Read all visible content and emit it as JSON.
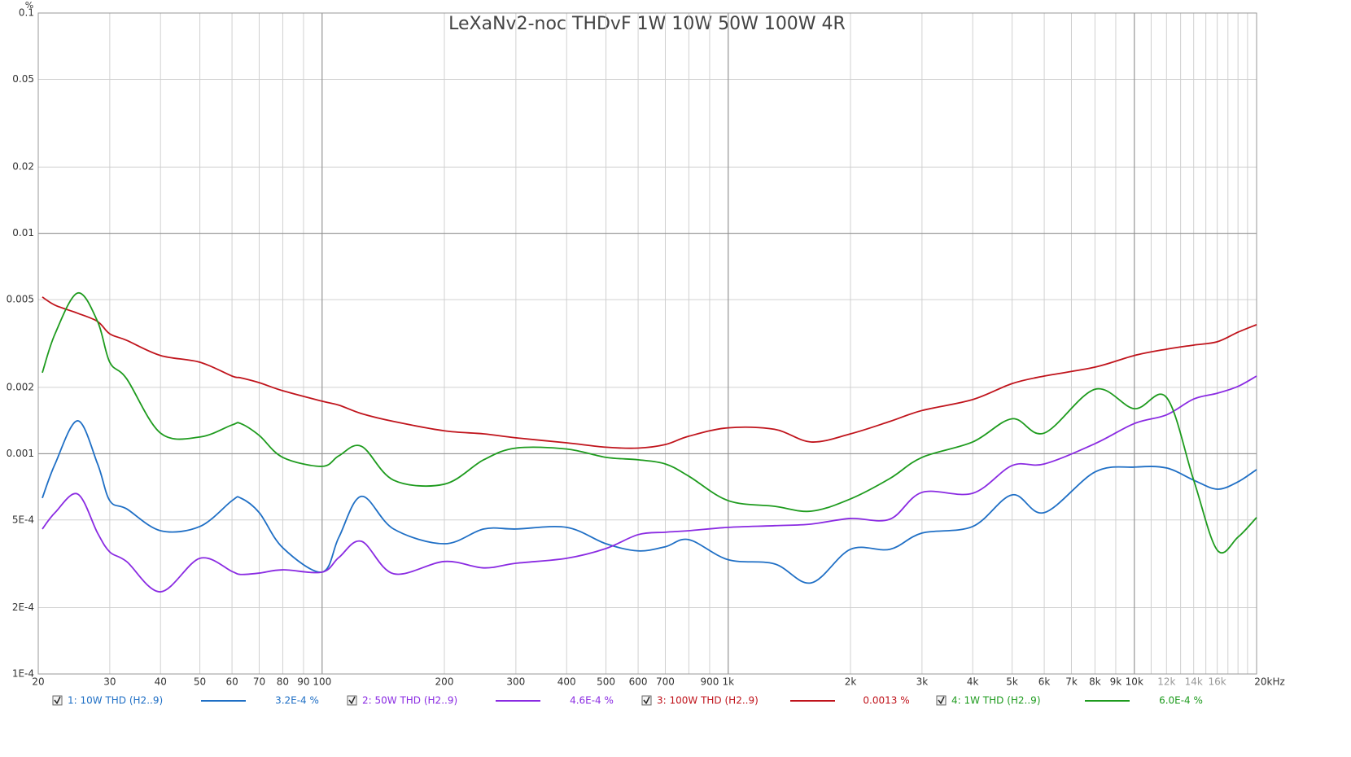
{
  "chart_data": {
    "type": "line",
    "title": "LeXaNv2-noc THDvF 1W 10W 50W 100W 4R",
    "y_unit": "%",
    "log_x": true,
    "log_y": true,
    "grid": true,
    "xlim": [
      20,
      20000
    ],
    "ylim": [
      0.0001,
      0.1
    ],
    "xticks": [
      20,
      30,
      40,
      50,
      60,
      70,
      80,
      90,
      100,
      200,
      300,
      400,
      500,
      600,
      700,
      900,
      {
        "value": 1000,
        "label": "1k"
      },
      {
        "value": 2000,
        "label": "2k"
      },
      {
        "value": 3000,
        "label": "3k"
      },
      {
        "value": 4000,
        "label": "4k"
      },
      {
        "value": 5000,
        "label": "5k"
      },
      {
        "value": 6000,
        "label": "6k"
      },
      {
        "value": 7000,
        "label": "7k"
      },
      {
        "value": 8000,
        "label": "8k"
      },
      {
        "value": 9000,
        "label": "9k"
      },
      {
        "value": 10000,
        "label": "10k"
      },
      {
        "value": 12000,
        "label": "12k"
      },
      {
        "value": 14000,
        "label": "14k"
      },
      {
        "value": 16000,
        "label": "16k"
      },
      {
        "value": 20000,
        "label": "20kHz"
      }
    ],
    "minor_xgrid": [
      800,
      11000,
      13000,
      15000,
      17000,
      18000,
      19000
    ],
    "major_xgrid": [
      100,
      1000,
      10000
    ],
    "major_ygrid": [
      0.01,
      0.001
    ],
    "yticks": [
      0.1,
      0.05,
      0.02,
      0.01,
      0.005,
      0.002,
      0.001,
      {
        "value": 0.0005,
        "label": "5E-4"
      },
      {
        "value": 0.0002,
        "label": "2E-4"
      },
      {
        "value": 0.0001,
        "label": "1E-4"
      }
    ],
    "x": [
      20,
      22,
      25,
      28,
      30,
      33,
      40,
      50,
      60,
      63,
      70,
      80,
      100,
      110,
      125,
      150,
      200,
      250,
      300,
      400,
      500,
      600,
      700,
      800,
      1000,
      1300,
      1600,
      2000,
      2500,
      3000,
      4000,
      5000,
      6000,
      8000,
      10000,
      12000,
      14000,
      16000,
      18000,
      20000
    ],
    "series": [
      {
        "name": "1: 10W THD (H2..9)",
        "color": "#1f6fc5",
        "cursor_label": "3.2E-4 %",
        "values": [
          0.000629,
          0.000898,
          0.00141,
          0.000898,
          0.000612,
          0.000562,
          0.000447,
          0.000467,
          0.000612,
          0.000629,
          0.00054,
          0.000374,
          0.00029,
          0.000418,
          0.00064,
          0.000455,
          0.00039,
          0.000455,
          0.000455,
          0.000463,
          0.00039,
          0.000362,
          0.000378,
          0.000407,
          0.00033,
          0.000316,
          0.000259,
          0.000368,
          0.000368,
          0.000436,
          0.000467,
          0.00065,
          0.00054,
          0.000826,
          0.000869,
          0.000861,
          0.000758,
          0.00069,
          0.000745,
          0.000847
        ]
      },
      {
        "name": "2: 50W THD (H2..9)",
        "color": "#8a2be2",
        "cursor_label": "4.6E-4 %",
        "values": [
          0.000455,
          0.00054,
          0.000656,
          0.000436,
          0.000358,
          0.000324,
          0.000236,
          0.000335,
          0.000292,
          0.000283,
          0.000287,
          0.000297,
          0.00029,
          0.000338,
          0.0004,
          0.000285,
          0.000324,
          0.000303,
          0.000318,
          0.000335,
          0.000371,
          0.000429,
          0.00044,
          0.000447,
          0.000463,
          0.000471,
          0.000479,
          0.000508,
          0.000504,
          0.000667,
          0.000661,
          0.000883,
          0.000898,
          0.00111,
          0.00137,
          0.0015,
          0.00177,
          0.00188,
          0.00202,
          0.00225
        ]
      },
      {
        "name": "3: 100W THD (H2..9)",
        "color": "#c0141c",
        "cursor_label": "0.0013 %",
        "values": [
          0.00514,
          0.00472,
          0.00434,
          0.00398,
          0.0035,
          0.00327,
          0.00279,
          0.0026,
          0.00225,
          0.00221,
          0.0021,
          0.00193,
          0.00173,
          0.00166,
          0.00152,
          0.0014,
          0.00127,
          0.00123,
          0.00118,
          0.00112,
          0.00107,
          0.00106,
          0.0011,
          0.0012,
          0.00131,
          0.00129,
          0.00113,
          0.00123,
          0.0014,
          0.00157,
          0.00176,
          0.00208,
          0.00225,
          0.00247,
          0.00279,
          0.00298,
          0.00311,
          0.00322,
          0.00356,
          0.00385
        ]
      },
      {
        "name": "4: 1W THD (H2..9)",
        "color": "#1e9b1e",
        "cursor_label": "6.0E-4 %",
        "values": [
          0.00233,
          0.0035,
          0.00536,
          0.00398,
          0.0026,
          0.00219,
          0.00124,
          0.00119,
          0.00135,
          0.00137,
          0.00121,
          0.000962,
          0.000876,
          0.000978,
          0.00108,
          0.000758,
          0.000727,
          0.000938,
          0.00106,
          0.00105,
          0.000962,
          0.000938,
          0.000898,
          0.00079,
          0.000612,
          0.000577,
          0.000548,
          0.000623,
          0.000771,
          0.000962,
          0.00113,
          0.00144,
          0.00124,
          0.00196,
          0.0016,
          0.0018,
          0.000758,
          0.000365,
          0.000418,
          0.000513
        ]
      }
    ]
  }
}
